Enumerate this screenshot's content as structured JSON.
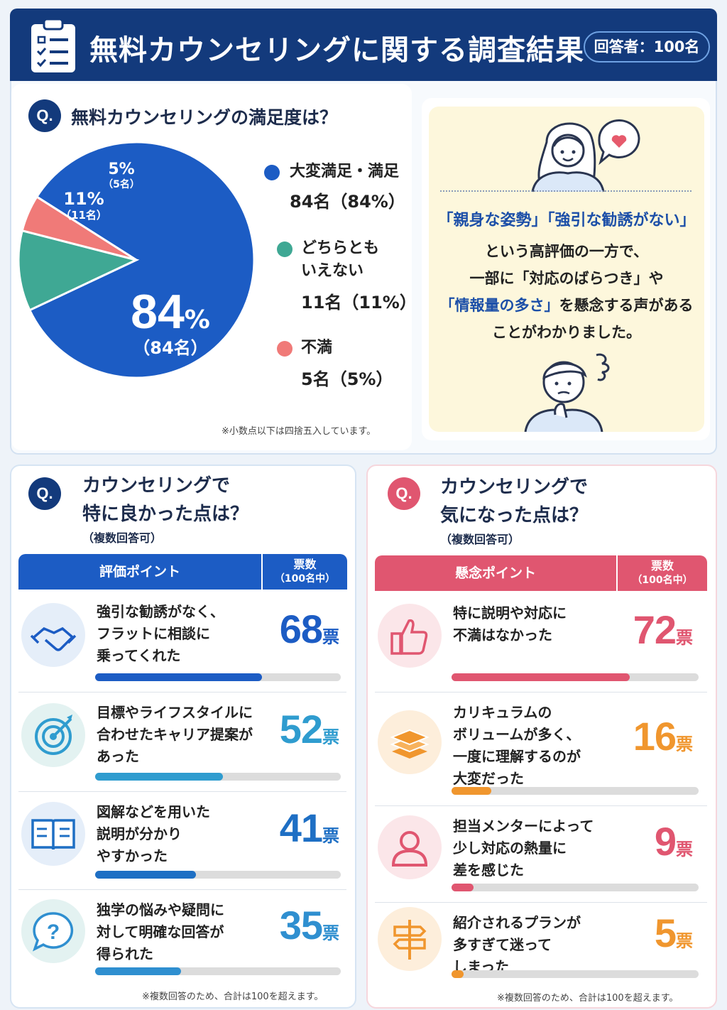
{
  "header": {
    "title": "無料カウンセリングに関する調査結果",
    "respondents": "回答者：100名"
  },
  "satisfaction": {
    "q_mark": "Q.",
    "question": "無料カウンセリングの満足度は？",
    "center_value": "84",
    "center_unit": "%",
    "center_count": "（84名）",
    "slice_labels": [
      {
        "pct": "11%",
        "count": "（11名）"
      },
      {
        "pct": "5%",
        "count": "（5名）"
      }
    ],
    "legend": [
      {
        "label": "大変満足・満足",
        "value": "84名（84%）",
        "color": "#1c5cc4"
      },
      {
        "label": "どちらとも\nいえない",
        "value": "11名（11%）",
        "color": "#3fa894"
      },
      {
        "label": "不満",
        "value": "5名（5%）",
        "color": "#f07a78"
      }
    ],
    "note": "※小数点以下は四捨五入しています。"
  },
  "comment": {
    "line1": "「親身な姿勢」「強引な勧誘がない」",
    "line2": "という高評価の一方で、",
    "line3": "一部に「対応のばらつき」や",
    "line4_hl": "「情報量の多さ」",
    "line4_rest": "を懸念する声がある",
    "line5": "ことがわかりました。"
  },
  "good": {
    "q_mark": "Q.",
    "question_line1": "カウンセリングで",
    "question_line2": "特に良かった点は？",
    "multi": "（複数回答可）",
    "col_point": "評価ポイント",
    "col_votes_line1": "票数",
    "col_votes_line2": "（100名中）",
    "vote_unit": "票",
    "rows": [
      {
        "text": "強引な勧誘がなく、\nフラットに相談に\n乗ってくれた",
        "votes": 68,
        "icon": "handshake-icon",
        "color": "#1c5cc4"
      },
      {
        "text": "目標やライフスタイルに\n合わせたキャリア提案が\nあった",
        "votes": 52,
        "icon": "target-icon",
        "color": "#2f9ccf"
      },
      {
        "text": "図解などを用いた\n説明が分かり\nやすかった",
        "votes": 41,
        "icon": "book-icon",
        "color": "#1e6fc4"
      },
      {
        "text": "独学の悩みや疑問に\n対して明確な回答が\n得られた",
        "votes": 35,
        "icon": "question-bubble-icon",
        "color": "#2f8fd0"
      }
    ],
    "note": "※複数回答のため、合計は100を超えます。"
  },
  "concern": {
    "q_mark": "Q.",
    "question_line1": "カウンセリングで",
    "question_line2": "気になった点は？",
    "multi": "（複数回答可）",
    "col_point": "懸念ポイント",
    "col_votes_line1": "票数",
    "col_votes_line2": "（100名中）",
    "vote_unit": "票",
    "rows": [
      {
        "text": "特に説明や対応に\n不満はなかった",
        "votes": 72,
        "icon": "thumbs-up-icon",
        "color": "#e05670"
      },
      {
        "text": "カリキュラムの\nボリュームが多く、\n一度に理解するのが\n大変だった",
        "votes": 16,
        "icon": "books-stack-icon",
        "color": "#f0962e"
      },
      {
        "text": "担当メンターによって\n少し対応の熱量に\n差を感じた",
        "votes": 9,
        "icon": "person-icon",
        "color": "#e05670"
      },
      {
        "text": "紹介されるプランが\n多すぎて迷って\nしまった",
        "votes": 5,
        "icon": "signpost-icon",
        "color": "#f0962e"
      }
    ],
    "note": "※複数回答のため、合計は100を超えます。"
  },
  "chart_data": [
    {
      "type": "pie",
      "title": "無料カウンセリングの満足度は？",
      "categories": [
        "大変満足・満足",
        "どちらともいえない",
        "不満"
      ],
      "values": [
        84,
        11,
        5
      ]
    },
    {
      "type": "bar",
      "title": "カウンセリングで特に良かった点は？",
      "categories": [
        "強引な勧誘がなく、フラットに相談に乗ってくれた",
        "目標やライフスタイルに合わせたキャリア提案があった",
        "図解などを用いた説明が分かりやすかった",
        "独学の悩みや疑問に対して明確な回答が得られた"
      ],
      "values": [
        68,
        52,
        41,
        35
      ],
      "ylim": [
        0,
        100
      ]
    },
    {
      "type": "bar",
      "title": "カウンセリングで気になった点は？",
      "categories": [
        "特に説明や対応に不満はなかった",
        "カリキュラムのボリュームが多く、一度に理解するのが大変だった",
        "担当メンターによって少し対応の熱量に差を感じた",
        "紹介されるプランが多すぎて迷ってしまった"
      ],
      "values": [
        72,
        16,
        9,
        5
      ],
      "ylim": [
        0,
        100
      ]
    }
  ]
}
